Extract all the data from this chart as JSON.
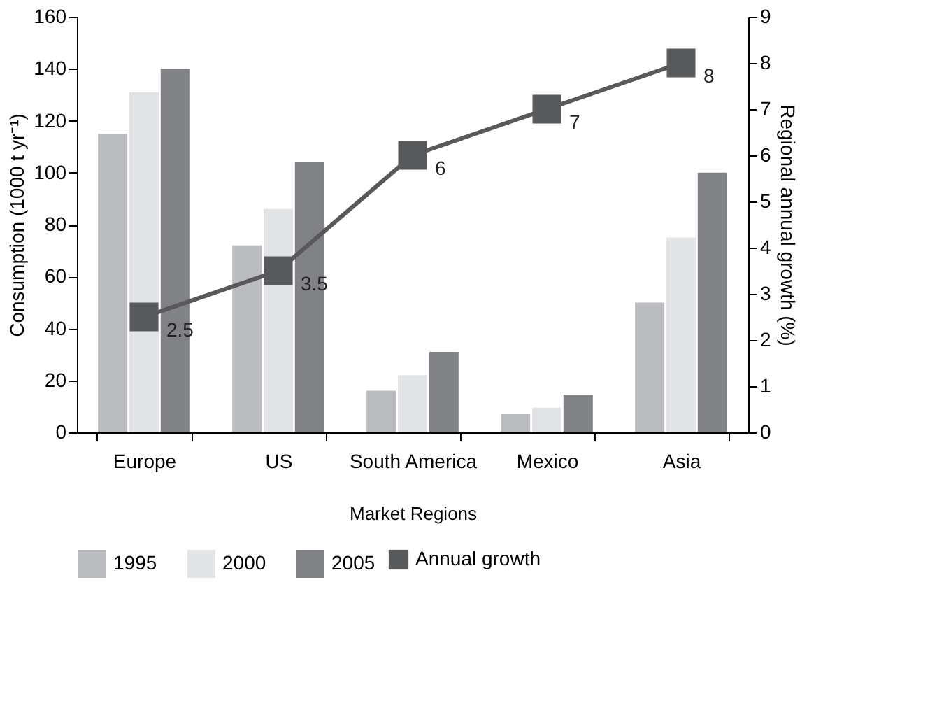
{
  "chart_data": {
    "type": "bar",
    "xlabel": "Market Regions",
    "ylabel": "Consumption (1000 t yr⁻¹)",
    "y2label": "Regional annual growth (%)",
    "categories": [
      "Europe",
      "US",
      "South America",
      "Mexico",
      "Asia"
    ],
    "series": [
      {
        "name": "1995",
        "color": "#bbbcc0",
        "values": [
          115,
          72,
          16,
          7,
          50
        ]
      },
      {
        "name": "2000",
        "color": "#e3e4e6",
        "values": [
          131,
          86,
          22,
          9.5,
          75
        ]
      },
      {
        "name": "2005",
        "color": "#818285",
        "values": [
          140,
          104,
          31,
          14.5,
          100
        ]
      },
      {
        "name": "Annual growth",
        "type": "line",
        "axis": "y2",
        "color": "#58595b",
        "marker": "square",
        "line_style": "solid",
        "values": [
          2.5,
          3.5,
          6,
          7,
          8
        ],
        "value_labels": [
          "2.5",
          "3.5",
          "6",
          "7",
          "8"
        ]
      }
    ],
    "ylim": [
      0,
      160
    ],
    "yticks": [
      0,
      20,
      40,
      60,
      80,
      100,
      120,
      140,
      160
    ],
    "y2lim": [
      0,
      9
    ],
    "y2ticks": [
      0,
      1,
      2,
      3,
      4,
      5,
      6,
      7,
      8,
      9
    ],
    "grid": false,
    "legend": "bottom"
  }
}
